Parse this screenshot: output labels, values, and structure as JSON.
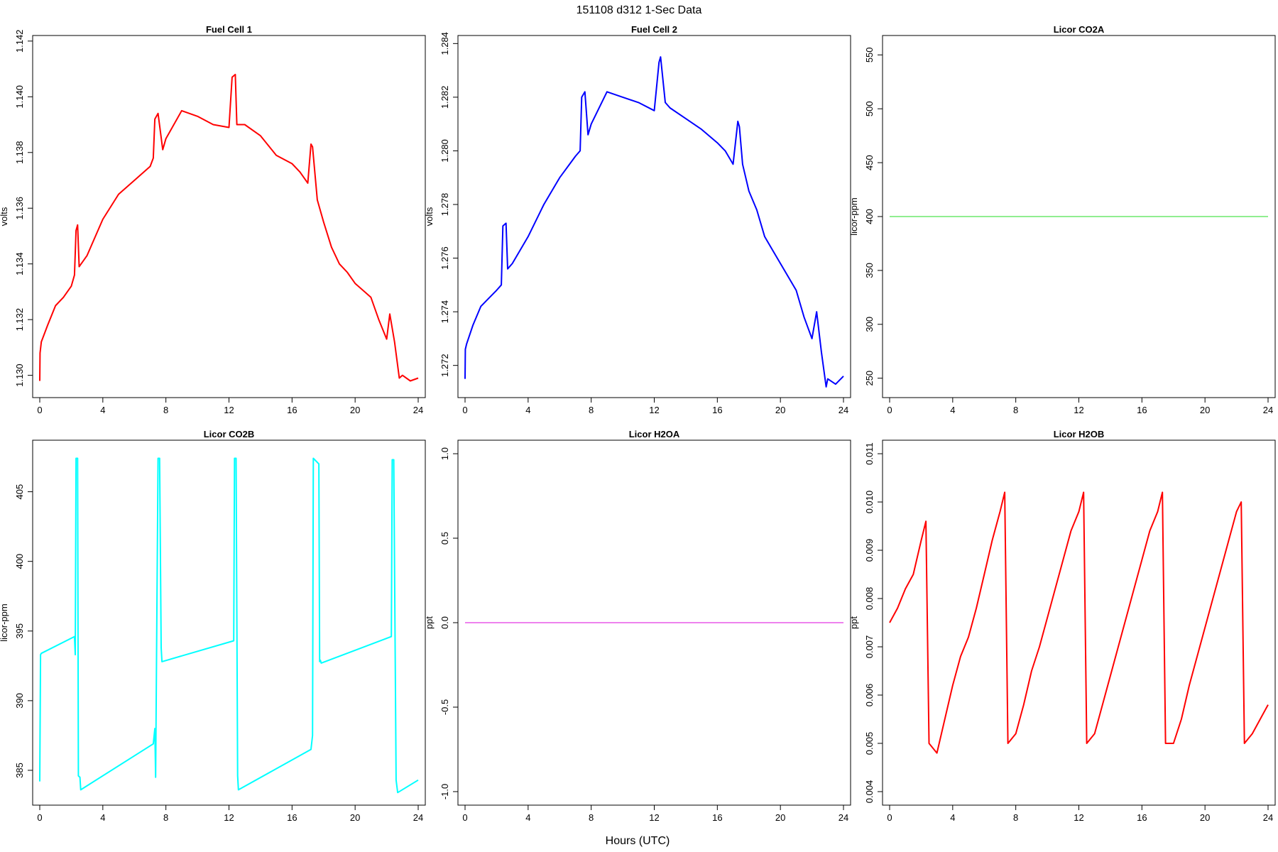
{
  "figure": {
    "title": "151108   d312   1-Sec Data",
    "xlabel": "Hours (UTC)"
  },
  "chart_data": [
    {
      "type": "line",
      "title": "Fuel Cell 1",
      "xlabel": "",
      "ylabel": "volts",
      "color": "#ff0000",
      "xlim": [
        0,
        24
      ],
      "ylim": [
        1.1292,
        1.1422
      ],
      "xticks": [
        0,
        4,
        8,
        12,
        16,
        20,
        24
      ],
      "yticks": [
        1.13,
        1.132,
        1.134,
        1.136,
        1.138,
        1.14,
        1.142
      ],
      "ytick_labels": [
        "1.130",
        "1.132",
        "1.134",
        "1.136",
        "1.138",
        "1.140",
        "1.142"
      ],
      "x": [
        0,
        0.02,
        0.1,
        0.5,
        1,
        1.5,
        2,
        2.2,
        2.3,
        2.4,
        2.5,
        3,
        4,
        5,
        6,
        7,
        7.2,
        7.3,
        7.5,
        7.8,
        8,
        9,
        10,
        11,
        12,
        12.2,
        12.4,
        12.5,
        13,
        14,
        15,
        16,
        16.5,
        17,
        17.2,
        17.3,
        17.6,
        18,
        18.5,
        19,
        19.5,
        20,
        21,
        21.5,
        22,
        22.2,
        22.5,
        22.8,
        23,
        23.5,
        24
      ],
      "y": [
        1.1298,
        1.1308,
        1.1312,
        1.1318,
        1.1325,
        1.1328,
        1.1332,
        1.1336,
        1.1352,
        1.1354,
        1.1339,
        1.1343,
        1.1356,
        1.1365,
        1.137,
        1.1375,
        1.1378,
        1.1392,
        1.1394,
        1.1381,
        1.1385,
        1.1395,
        1.1393,
        1.139,
        1.1389,
        1.1407,
        1.1408,
        1.139,
        1.139,
        1.1386,
        1.1379,
        1.1376,
        1.1373,
        1.1369,
        1.1383,
        1.1382,
        1.1363,
        1.1355,
        1.1346,
        1.134,
        1.1337,
        1.1333,
        1.1328,
        1.132,
        1.1313,
        1.1322,
        1.1312,
        1.1299,
        1.13,
        1.1298,
        1.1299
      ]
    },
    {
      "type": "line",
      "title": "Fuel Cell 2",
      "xlabel": "",
      "ylabel": "volts",
      "color": "#0000ff",
      "xlim": [
        0,
        24
      ],
      "ylim": [
        1.2708,
        1.2843
      ],
      "xticks": [
        0,
        4,
        8,
        12,
        16,
        20,
        24
      ],
      "yticks": [
        1.272,
        1.274,
        1.276,
        1.278,
        1.28,
        1.282,
        1.284
      ],
      "ytick_labels": [
        "1.272",
        "1.274",
        "1.276",
        "1.278",
        "1.280",
        "1.282",
        "1.284"
      ],
      "x": [
        0,
        0.02,
        0.1,
        0.5,
        1,
        1.5,
        2,
        2.3,
        2.4,
        2.6,
        2.7,
        3,
        4,
        5,
        6,
        7,
        7.3,
        7.4,
        7.6,
        7.8,
        8,
        9,
        10,
        11,
        12,
        12.3,
        12.4,
        12.7,
        13,
        14,
        15,
        16,
        16.5,
        17,
        17.3,
        17.4,
        17.6,
        18,
        18.5,
        19,
        19.5,
        20,
        21,
        21.5,
        22,
        22.3,
        22.6,
        22.9,
        23,
        23.5,
        24
      ],
      "y": [
        1.2715,
        1.2726,
        1.2728,
        1.2735,
        1.2742,
        1.2745,
        1.2748,
        1.275,
        1.2772,
        1.2773,
        1.2756,
        1.2758,
        1.2768,
        1.278,
        1.279,
        1.2798,
        1.28,
        1.282,
        1.2822,
        1.2806,
        1.281,
        1.2822,
        1.282,
        1.2818,
        1.2815,
        1.2833,
        1.2835,
        1.2818,
        1.2816,
        1.2812,
        1.2808,
        1.2803,
        1.28,
        1.2795,
        1.2811,
        1.2809,
        1.2795,
        1.2785,
        1.2778,
        1.2768,
        1.2763,
        1.2758,
        1.2748,
        1.2738,
        1.273,
        1.274,
        1.2725,
        1.2712,
        1.2715,
        1.2713,
        1.2716
      ]
    },
    {
      "type": "line",
      "title": "Licor CO2A",
      "xlabel": "",
      "ylabel": "licor-ppm",
      "color": "#90ee90",
      "xlim": [
        0,
        24
      ],
      "ylim": [
        232,
        568
      ],
      "xticks": [
        0,
        4,
        8,
        12,
        16,
        20,
        24
      ],
      "yticks": [
        250,
        300,
        350,
        400,
        450,
        500,
        550
      ],
      "ytick_labels": [
        "250",
        "300",
        "350",
        "400",
        "450",
        "500",
        "550"
      ],
      "x": [
        0,
        24
      ],
      "y": [
        400,
        400
      ]
    },
    {
      "type": "line",
      "title": "Licor CO2B",
      "xlabel": "",
      "ylabel": "licor-ppm",
      "color": "#00ffff",
      "xlim": [
        0,
        24
      ],
      "ylim": [
        382.5,
        408.7
      ],
      "xticks": [
        0,
        4,
        8,
        12,
        16,
        20,
        24
      ],
      "yticks": [
        385,
        390,
        395,
        400,
        405
      ],
      "ytick_labels": [
        "385",
        "390",
        "395",
        "400",
        "405"
      ],
      "x": [
        0,
        0.05,
        0.1,
        2.2,
        2.25,
        2.3,
        2.4,
        2.45,
        2.55,
        2.6,
        7.2,
        7.3,
        7.35,
        7.5,
        7.6,
        7.7,
        7.75,
        12.3,
        12.35,
        12.45,
        12.55,
        12.6,
        17.2,
        17.3,
        17.35,
        17.7,
        17.75,
        17.8,
        17.85,
        22.3,
        22.35,
        22.45,
        22.6,
        22.7,
        24
      ],
      "y": [
        384.2,
        393.3,
        393.4,
        394.6,
        393.3,
        407.4,
        407.4,
        384.6,
        384.5,
        383.6,
        386.9,
        388.0,
        384.5,
        407.4,
        407.4,
        393.8,
        392.8,
        394.3,
        407.4,
        407.4,
        384.6,
        383.6,
        386.5,
        387.5,
        407.4,
        407.0,
        392.8,
        392.9,
        392.7,
        394.6,
        407.3,
        407.3,
        384.3,
        383.4,
        384.3
      ]
    },
    {
      "type": "line",
      "title": "Licor H2OA",
      "xlabel": "",
      "ylabel": "ppt",
      "color": "#ee82ee",
      "xlim": [
        0,
        24
      ],
      "ylim": [
        -1.08,
        1.08
      ],
      "xticks": [
        0,
        4,
        8,
        12,
        16,
        20,
        24
      ],
      "yticks": [
        -1.0,
        -0.5,
        0.0,
        0.5,
        1.0
      ],
      "ytick_labels": [
        "-1.0",
        "-0.5",
        "0.0",
        "0.5",
        "1.0"
      ],
      "x": [
        0,
        24
      ],
      "y": [
        0,
        0
      ]
    },
    {
      "type": "line",
      "title": "Licor H2OB",
      "xlabel": "",
      "ylabel": "ppt",
      "color": "#ff0000",
      "xlim": [
        0,
        24
      ],
      "ylim": [
        0.00372,
        0.01128
      ],
      "xticks": [
        0,
        4,
        8,
        12,
        16,
        20,
        24
      ],
      "yticks": [
        0.004,
        0.005,
        0.006,
        0.007,
        0.008,
        0.009,
        0.01,
        0.011
      ],
      "ytick_labels": [
        "0.004",
        "0.005",
        "0.006",
        "0.007",
        "0.008",
        "0.009",
        "0.010",
        "0.011"
      ],
      "x": [
        0,
        0.5,
        1,
        1.5,
        2,
        2.3,
        2.5,
        3,
        3.5,
        4,
        4.5,
        5,
        5.5,
        6,
        6.5,
        7,
        7.3,
        7.5,
        8,
        8.5,
        9,
        9.5,
        10,
        10.5,
        11,
        11.5,
        12,
        12.3,
        12.5,
        13,
        13.5,
        14,
        14.5,
        15,
        15.5,
        16,
        16.5,
        17,
        17.3,
        17.5,
        18,
        18.5,
        19,
        19.5,
        20,
        20.5,
        21,
        21.5,
        22,
        22.3,
        22.5,
        23,
        23.5,
        24
      ],
      "y": [
        0.0075,
        0.0078,
        0.0082,
        0.0085,
        0.0092,
        0.0096,
        0.005,
        0.0048,
        0.0055,
        0.0062,
        0.0068,
        0.0072,
        0.0078,
        0.0085,
        0.0092,
        0.0098,
        0.0102,
        0.005,
        0.0052,
        0.0058,
        0.0065,
        0.007,
        0.0076,
        0.0082,
        0.0088,
        0.0094,
        0.0098,
        0.0102,
        0.005,
        0.0052,
        0.0058,
        0.0064,
        0.007,
        0.0076,
        0.0082,
        0.0088,
        0.0094,
        0.0098,
        0.0102,
        0.005,
        0.005,
        0.0055,
        0.0062,
        0.0068,
        0.0074,
        0.008,
        0.0086,
        0.0092,
        0.0098,
        0.01,
        0.005,
        0.0052,
        0.0055,
        0.0058
      ]
    }
  ]
}
